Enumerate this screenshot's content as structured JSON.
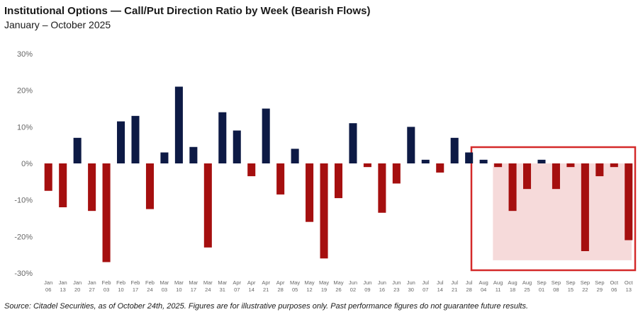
{
  "header": {
    "title": "Institutional Options — Call/Put Direction Ratio by Week (Bearish Flows)",
    "subtitle": "January – October 2025"
  },
  "footnote": "Source: Citadel Securities, as of October 24th, 2025. Figures are for illustrative purposes only. Past performance figures do not guarantee future results.",
  "colors": {
    "positive": "#0d1a45",
    "negative": "#a50f0f",
    "highlight_border": "#d42a2a",
    "highlight_fill": "#f6dada",
    "axis_text": "#666666"
  },
  "chart_data": {
    "type": "bar",
    "title": "Institutional Options — Call/Put Direction Ratio by Week (Bearish Flows)",
    "subtitle": "January – October 2025",
    "ylim": [
      -30,
      30
    ],
    "yticks": [
      30,
      20,
      10,
      0,
      -10,
      -20,
      -30
    ],
    "ytick_labels": [
      "30%",
      "20%",
      "10%",
      "0%",
      "-10%",
      "-20%",
      "-30%"
    ],
    "categories": [
      [
        "Jan",
        "06"
      ],
      [
        "Jan",
        "13"
      ],
      [
        "Jan",
        "20"
      ],
      [
        "Jan",
        "27"
      ],
      [
        "Feb",
        "03"
      ],
      [
        "Feb",
        "10"
      ],
      [
        "Feb",
        "17"
      ],
      [
        "Feb",
        "24"
      ],
      [
        "Mar",
        "03"
      ],
      [
        "Mar",
        "10"
      ],
      [
        "Mar",
        "17"
      ],
      [
        "Mar",
        "24"
      ],
      [
        "Mar",
        "31"
      ],
      [
        "Apr",
        "07"
      ],
      [
        "Apr",
        "14"
      ],
      [
        "Apr",
        "21"
      ],
      [
        "Apr",
        "28"
      ],
      [
        "May",
        "05"
      ],
      [
        "May",
        "12"
      ],
      [
        "May",
        "19"
      ],
      [
        "May",
        "26"
      ],
      [
        "Jun",
        "02"
      ],
      [
        "Jun",
        "09"
      ],
      [
        "Jun",
        "16"
      ],
      [
        "Jun",
        "23"
      ],
      [
        "Jun",
        "30"
      ],
      [
        "Jul",
        "07"
      ],
      [
        "Jul",
        "14"
      ],
      [
        "Jul",
        "21"
      ],
      [
        "Jul",
        "28"
      ],
      [
        "Aug",
        "04"
      ],
      [
        "Aug",
        "11"
      ],
      [
        "Aug",
        "18"
      ],
      [
        "Aug",
        "25"
      ],
      [
        "Sep",
        "01"
      ],
      [
        "Sep",
        "08"
      ],
      [
        "Sep",
        "15"
      ],
      [
        "Sep",
        "22"
      ],
      [
        "Sep",
        "29"
      ],
      [
        "Oct",
        "06"
      ],
      [
        "Oct",
        "13"
      ]
    ],
    "series": [
      {
        "name": "",
        "values": [
          [
            -7.5,
            0
          ],
          [
            -12,
            0
          ],
          [
            7,
            0
          ],
          [
            -13,
            0
          ],
          [
            -27,
            0
          ],
          [
            11.5,
            0
          ],
          [
            13,
            0
          ],
          [
            -12.5,
            0
          ],
          [
            3,
            0
          ],
          [
            21,
            0
          ],
          [
            4.5,
            0
          ],
          [
            -23,
            0
          ],
          [
            14,
            0
          ],
          [
            9,
            0
          ],
          [
            -3.5,
            0
          ],
          [
            15,
            0
          ],
          [
            -8.5,
            0
          ],
          [
            4,
            0
          ],
          [
            -16,
            0
          ],
          [
            -26,
            0
          ],
          [
            -9.5,
            0
          ],
          [
            11,
            0
          ],
          [
            -1,
            0
          ],
          [
            -13.5,
            0
          ],
          [
            -5.5,
            0
          ],
          [
            10,
            0
          ],
          [
            1,
            0
          ],
          [
            -2.5,
            0
          ],
          [
            7,
            0
          ],
          [
            3,
            0
          ],
          [
            1,
            0
          ],
          [
            -1,
            0
          ],
          [
            -13,
            0
          ],
          [
            -7,
            0
          ],
          [
            1,
            0
          ],
          [
            -7,
            0
          ],
          [
            -1,
            0
          ],
          [
            -24,
            0
          ],
          [
            -3.5,
            0
          ],
          [
            -1,
            0
          ],
          [
            -21,
            0
          ]
        ]
      }
    ],
    "highlight": {
      "from_index": 31,
      "to_index": 40,
      "lower_value": -26.5
    },
    "grid": false,
    "legend": "none"
  }
}
